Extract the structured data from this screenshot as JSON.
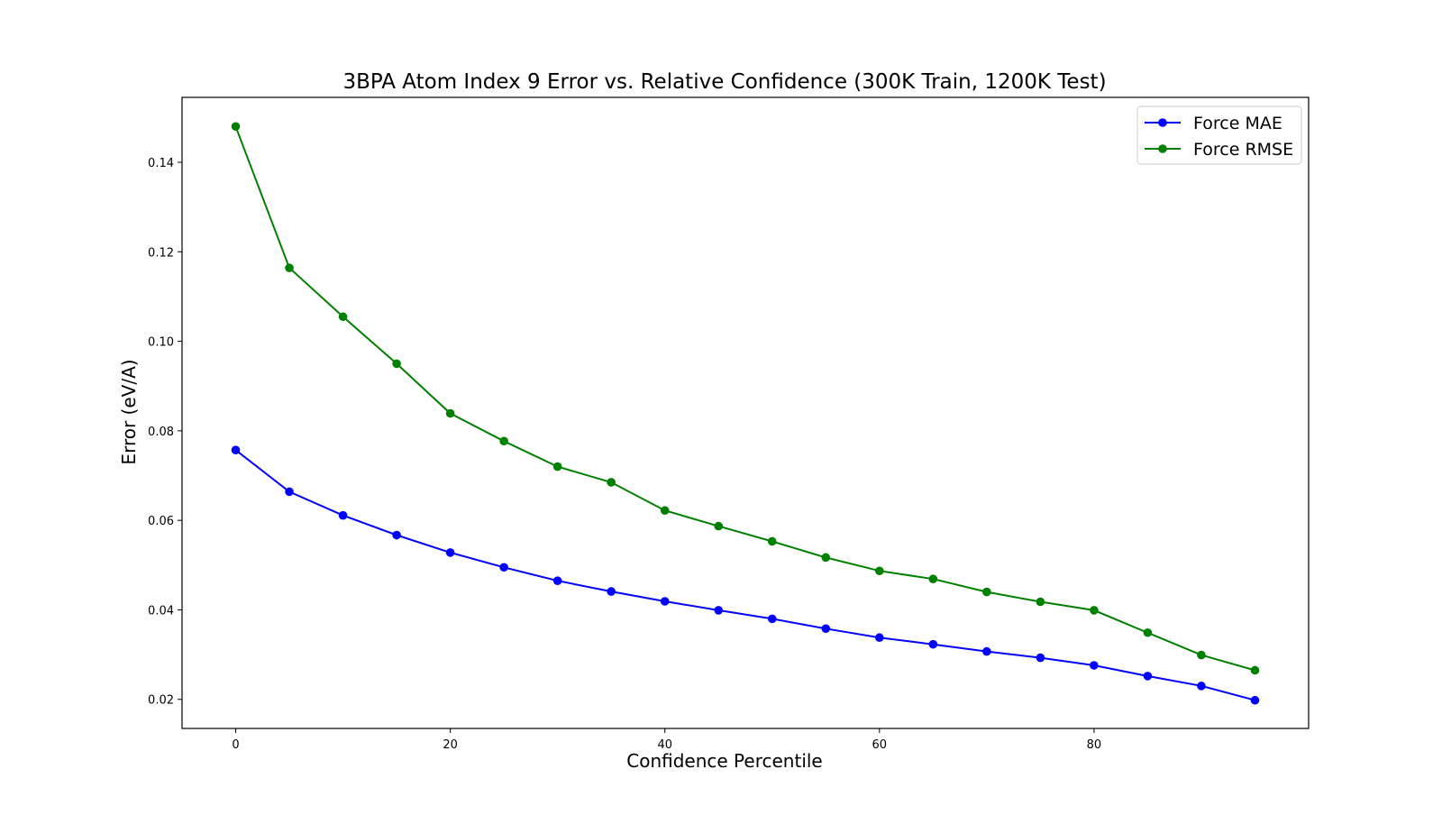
{
  "chart_data": {
    "type": "line",
    "title": "3BPA Atom Index 9 Error vs. Relative Confidence (300K Train, 1200K Test)",
    "xlabel": "Confidence Percentile",
    "ylabel": "Error (eV/A)",
    "xlim": [
      -5,
      100
    ],
    "ylim": [
      0.0135,
      0.1545
    ],
    "xticks": [
      0,
      20,
      40,
      60,
      80
    ],
    "xtick_labels": [
      "0",
      "20",
      "40",
      "60",
      "80"
    ],
    "yticks": [
      0.02,
      0.04,
      0.06,
      0.08,
      0.1,
      0.12,
      0.14
    ],
    "ytick_labels": [
      "0.02",
      "0.04",
      "0.06",
      "0.08",
      "0.10",
      "0.12",
      "0.14"
    ],
    "grid": false,
    "legend_position": "top-right",
    "x": [
      0,
      5,
      10,
      15,
      20,
      25,
      30,
      35,
      40,
      45,
      50,
      55,
      60,
      65,
      70,
      75,
      80,
      85,
      90,
      95
    ],
    "series": [
      {
        "name": "Force MAE",
        "color": "#0000ff",
        "marker": "circle",
        "values": [
          0.0757,
          0.0664,
          0.0611,
          0.0567,
          0.0528,
          0.0495,
          0.0465,
          0.0441,
          0.0419,
          0.0399,
          0.038,
          0.0358,
          0.0338,
          0.0323,
          0.0307,
          0.0293,
          0.0276,
          0.0252,
          0.023,
          0.0198
        ]
      },
      {
        "name": "Force RMSE",
        "color": "#008000",
        "marker": "circle",
        "values": [
          0.148,
          0.1164,
          0.1055,
          0.095,
          0.0839,
          0.0777,
          0.072,
          0.0685,
          0.0622,
          0.0587,
          0.0553,
          0.0517,
          0.0487,
          0.0469,
          0.044,
          0.0418,
          0.0399,
          0.0349,
          0.0299,
          0.0265
        ]
      }
    ]
  }
}
